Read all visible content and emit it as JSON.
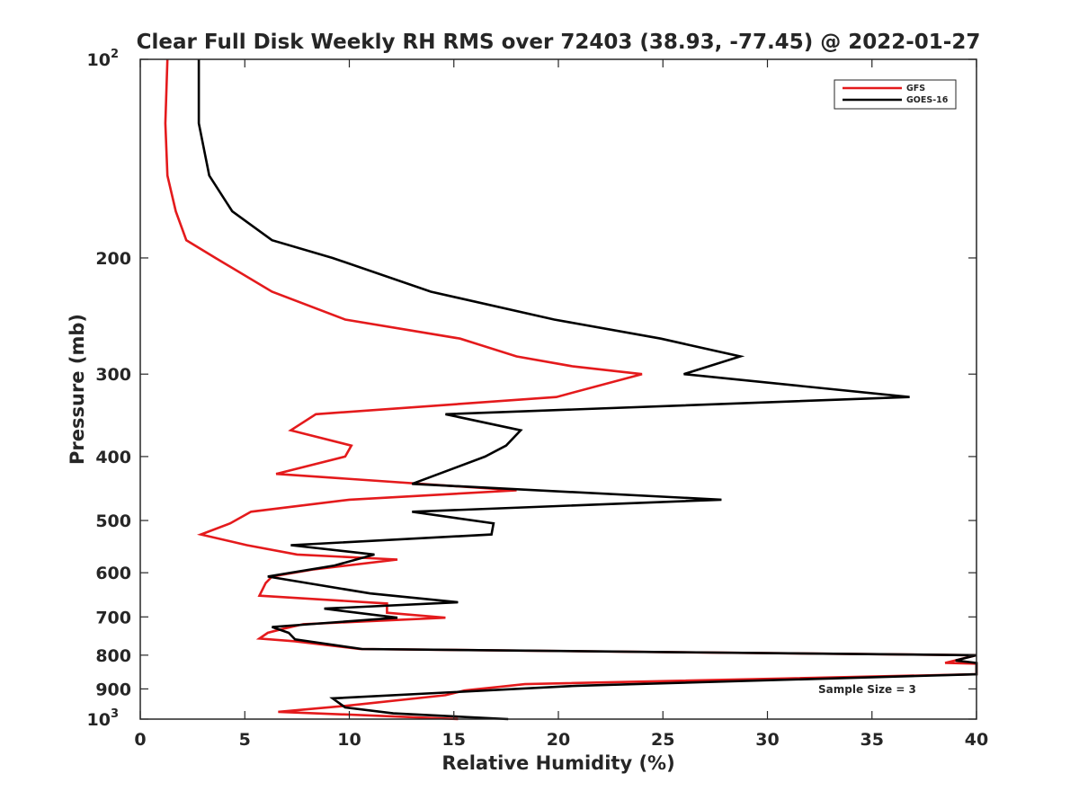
{
  "chart_data": {
    "type": "line",
    "title": "Clear Full Disk Weekly RH RMS over 72403 (38.93, -77.45) @ 2022-01-27",
    "xlabel": "Relative Humidity (%)",
    "ylabel": "Pressure (mb)",
    "xlim": [
      0,
      40
    ],
    "ylim": [
      100,
      1000
    ],
    "yscale": "log",
    "y_reversed": true,
    "grid": false,
    "legend_position": "top-right",
    "x_ticks": [
      0,
      5,
      10,
      15,
      20,
      25,
      30,
      35,
      40
    ],
    "x_tick_labels": [
      "0",
      "5",
      "10",
      "15",
      "20",
      "25",
      "30",
      "35",
      "40"
    ],
    "y_ticks": [
      100,
      200,
      300,
      400,
      500,
      600,
      700,
      800,
      900,
      1000
    ],
    "y_tick_labels": [
      {
        "base": "10",
        "exp": "2"
      },
      {
        "base": "200",
        "exp": ""
      },
      {
        "base": "300",
        "exp": ""
      },
      {
        "base": "400",
        "exp": ""
      },
      {
        "base": "500",
        "exp": ""
      },
      {
        "base": "600",
        "exp": ""
      },
      {
        "base": "700",
        "exp": ""
      },
      {
        "base": "800",
        "exp": ""
      },
      {
        "base": "900",
        "exp": ""
      },
      {
        "base": "10",
        "exp": "3"
      }
    ],
    "annotation": "Sample Size = 3",
    "series": [
      {
        "name": "GFS",
        "color": "#e41a1c",
        "points": [
          [
            1.3,
            100
          ],
          [
            1.2,
            125
          ],
          [
            1.3,
            150
          ],
          [
            1.7,
            170
          ],
          [
            2.2,
            188
          ],
          [
            3.6,
            200
          ],
          [
            6.3,
            225
          ],
          [
            9.8,
            248
          ],
          [
            15.3,
            265
          ],
          [
            18.0,
            282
          ],
          [
            20.7,
            292
          ],
          [
            24.0,
            300
          ],
          [
            19.9,
            325
          ],
          [
            8.4,
            345
          ],
          [
            7.2,
            365
          ],
          [
            10.1,
            385
          ],
          [
            9.8,
            400
          ],
          [
            6.5,
            425
          ],
          [
            18.0,
            450
          ],
          [
            10.0,
            465
          ],
          [
            5.3,
            485
          ],
          [
            4.3,
            505
          ],
          [
            2.9,
            525
          ],
          [
            5.1,
            545
          ],
          [
            7.5,
            563
          ],
          [
            12.3,
            573
          ],
          [
            8.3,
            593
          ],
          [
            6.3,
            608
          ],
          [
            6.0,
            622
          ],
          [
            5.7,
            650
          ],
          [
            11.8,
            668
          ],
          [
            11.8,
            690
          ],
          [
            14.6,
            702
          ],
          [
            7.8,
            718
          ],
          [
            6.8,
            730
          ],
          [
            6.1,
            740
          ],
          [
            5.7,
            755
          ],
          [
            7.4,
            762
          ],
          [
            10.5,
            783
          ],
          [
            40.0,
            800
          ],
          [
            38.5,
            822
          ],
          [
            40.0,
            824
          ],
          [
            40.0,
            855
          ],
          [
            18.4,
            885
          ],
          [
            15.5,
            905
          ],
          [
            14.6,
            920
          ],
          [
            9.8,
            955
          ],
          [
            6.6,
            975
          ],
          [
            10.2,
            985
          ],
          [
            15.2,
            1000
          ]
        ]
      },
      {
        "name": "GOES-16",
        "color": "#000000",
        "points": [
          [
            2.8,
            100
          ],
          [
            2.8,
            125
          ],
          [
            3.3,
            150
          ],
          [
            4.4,
            170
          ],
          [
            6.3,
            188
          ],
          [
            9.2,
            200
          ],
          [
            13.9,
            225
          ],
          [
            19.8,
            248
          ],
          [
            24.9,
            265
          ],
          [
            28.7,
            282
          ],
          [
            26.0,
            300
          ],
          [
            36.8,
            325
          ],
          [
            14.6,
            345
          ],
          [
            18.2,
            365
          ],
          [
            17.5,
            385
          ],
          [
            16.5,
            400
          ],
          [
            13.0,
            440
          ],
          [
            27.8,
            465
          ],
          [
            13.0,
            485
          ],
          [
            16.9,
            505
          ],
          [
            16.8,
            525
          ],
          [
            7.2,
            545
          ],
          [
            11.2,
            563
          ],
          [
            9.3,
            585
          ],
          [
            6.1,
            608
          ],
          [
            11.0,
            645
          ],
          [
            15.2,
            665
          ],
          [
            8.8,
            680
          ],
          [
            12.3,
            702
          ],
          [
            6.3,
            725
          ],
          [
            7.1,
            740
          ],
          [
            7.4,
            757
          ],
          [
            10.6,
            783
          ],
          [
            40.0,
            800
          ],
          [
            39.0,
            815
          ],
          [
            40.0,
            822
          ],
          [
            40.0,
            855
          ],
          [
            20.9,
            890
          ],
          [
            9.2,
            930
          ],
          [
            9.8,
            960
          ],
          [
            12.1,
            980
          ],
          [
            17.6,
            1000
          ]
        ]
      }
    ]
  }
}
